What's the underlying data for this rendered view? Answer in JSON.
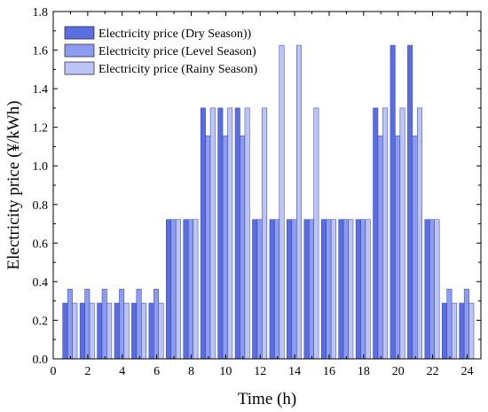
{
  "chart_data": {
    "type": "bar",
    "title": "",
    "xlabel": "Time (h)",
    "ylabel": "Electricity price (¥/kWh)",
    "xlim": [
      0,
      24.8
    ],
    "ylim": [
      0,
      1.8
    ],
    "xticks": [
      0,
      2,
      4,
      6,
      8,
      10,
      12,
      14,
      16,
      18,
      20,
      22,
      24
    ],
    "yticks": [
      0.0,
      0.2,
      0.4,
      0.6,
      0.8,
      1.0,
      1.2,
      1.4,
      1.6,
      1.8
    ],
    "ytick_labels": [
      "0.0",
      "0.2",
      "0.4",
      "0.6",
      "0.8",
      "1.0",
      "1.2",
      "1.4",
      "1.6",
      "1.8"
    ],
    "categories": [
      1,
      2,
      3,
      4,
      5,
      6,
      7,
      8,
      9,
      10,
      11,
      12,
      13,
      14,
      15,
      16,
      17,
      18,
      19,
      20,
      21,
      22,
      23,
      24
    ],
    "series": [
      {
        "name": "Electricity price  (Dry Season))",
        "color": "#5b6ee1",
        "values": [
          0.2889,
          0.2889,
          0.2889,
          0.2889,
          0.2889,
          0.2889,
          0.7222,
          0.7222,
          1.3,
          1.3,
          1.3,
          0.7222,
          0.7222,
          0.7222,
          0.7222,
          0.7222,
          0.7222,
          0.7222,
          1.3,
          1.625,
          1.625,
          0.7222,
          0.2889,
          0.2889
        ]
      },
      {
        "name": "Electricity price (Level Season)",
        "color": "#8d9cf0",
        "values": [
          0.3611,
          0.3611,
          0.3611,
          0.3611,
          0.3611,
          0.3611,
          0.7222,
          0.7222,
          1.1556,
          1.1556,
          1.1556,
          0.7222,
          0.7222,
          0.7222,
          0.7222,
          0.7222,
          0.7222,
          0.7222,
          1.1556,
          1.1556,
          1.1556,
          0.7222,
          0.3611,
          0.3611
        ]
      },
      {
        "name": "Electricity price (Rainy Season)",
        "color": "#bcc5f5",
        "values": [
          0.2889,
          0.2889,
          0.2889,
          0.2889,
          0.2889,
          0.2889,
          0.7222,
          0.7222,
          1.3,
          1.3,
          1.3,
          1.3,
          1.625,
          1.625,
          1.3,
          0.7222,
          0.7222,
          0.7222,
          1.3,
          1.3,
          1.3,
          0.7222,
          0.2889,
          0.2889
        ]
      }
    ],
    "legend_position": "top-left",
    "grid": false
  }
}
